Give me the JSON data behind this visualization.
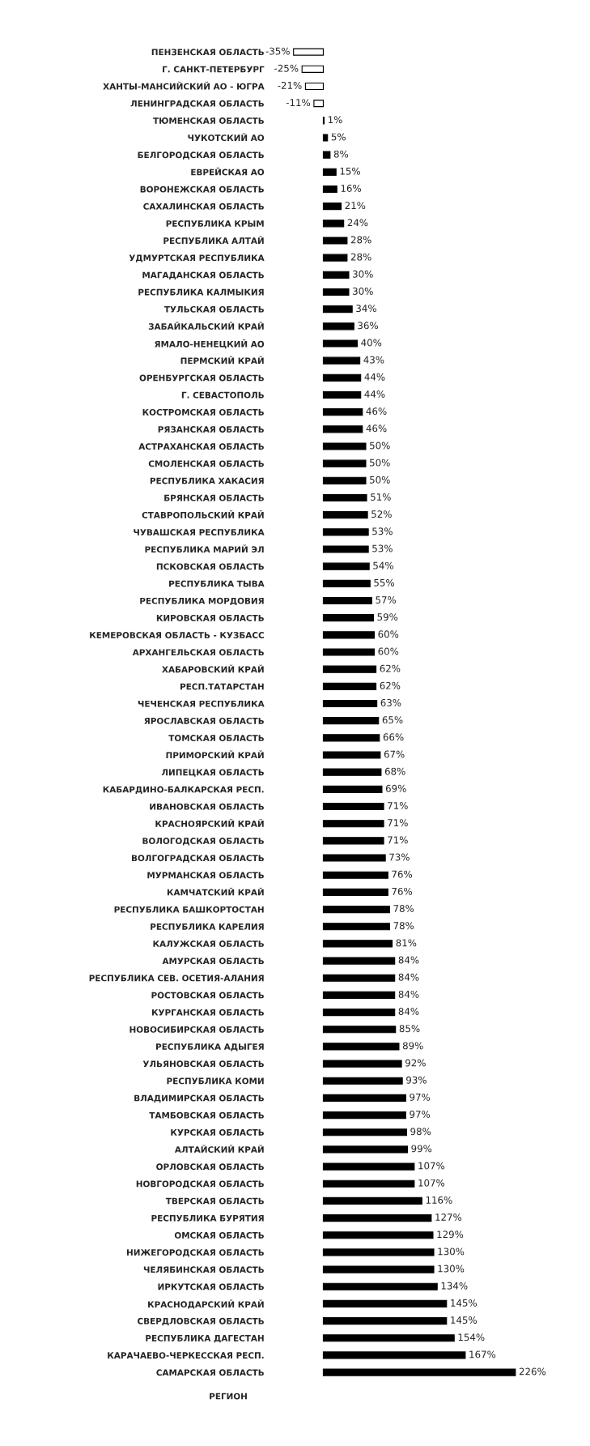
{
  "chart_data": {
    "type": "bar",
    "orientation": "horizontal",
    "ylabel": "РЕГИОН",
    "categories": [
      "ПЕНЗЕНСКАЯ ОБЛАСТЬ",
      "Г. САНКТ-ПЕТЕРБУРГ",
      "ХАНТЫ-МАНСИЙСКИЙ АО - ЮГРА",
      "ЛЕНИНГРАДСКАЯ ОБЛАСТЬ",
      "ТЮМЕНСКАЯ ОБЛАСТЬ",
      "ЧУКОТСКИЙ АО",
      "БЕЛГОРОДСКАЯ ОБЛАСТЬ",
      "ЕВРЕЙСКАЯ АО",
      "ВОРОНЕЖСКАЯ ОБЛАСТЬ",
      "САХАЛИНСКАЯ ОБЛАСТЬ",
      "РЕСПУБЛИКА КРЫМ",
      "РЕСПУБЛИКА АЛТАЙ",
      "УДМУРТСКАЯ РЕСПУБЛИКА",
      "МАГАДАНСКАЯ ОБЛАСТЬ",
      "РЕСПУБЛИКА КАЛМЫКИЯ",
      "ТУЛЬСКАЯ ОБЛАСТЬ",
      "ЗАБАЙКАЛЬСКИЙ КРАЙ",
      "ЯМАЛО-НЕНЕЦКИЙ АО",
      "ПЕРМСКИЙ КРАЙ",
      "ОРЕНБУРГСКАЯ ОБЛАСТЬ",
      "Г. СЕВАСТОПОЛЬ",
      "КОСТРОМСКАЯ ОБЛАСТЬ",
      "РЯЗАНСКАЯ ОБЛАСТЬ",
      "АСТРАХАНСКАЯ ОБЛАСТЬ",
      "СМОЛЕНСКАЯ ОБЛАСТЬ",
      "РЕСПУБЛИКА ХАКАСИЯ",
      "БРЯНСКАЯ ОБЛАСТЬ",
      "СТАВРОПОЛЬСКИЙ КРАЙ",
      "ЧУВАШСКАЯ РЕСПУБЛИКА",
      "РЕСПУБЛИКА МАРИЙ ЭЛ",
      "ПСКОВСКАЯ ОБЛАСТЬ",
      "РЕСПУБЛИКА ТЫВА",
      "РЕСПУБЛИКА МОРДОВИЯ",
      "КИРОВСКАЯ ОБЛАСТЬ",
      "КЕМЕРОВСКАЯ ОБЛАСТЬ - КУЗБАСС",
      "АРХАНГЕЛЬСКАЯ ОБЛАСТЬ",
      "ХАБАРОВСКИЙ КРАЙ",
      "РЕСП.ТАТАРСТАН",
      "ЧЕЧЕНСКАЯ РЕСПУБЛИКА",
      "ЯРОСЛАВСКАЯ ОБЛАСТЬ",
      "ТОМСКАЯ ОБЛАСТЬ",
      "ПРИМОРСКИЙ КРАЙ",
      "ЛИПЕЦКАЯ ОБЛАСТЬ",
      "КАБАРДИНО-БАЛКАРСКАЯ РЕСП.",
      "ИВАНОВСКАЯ ОБЛАСТЬ",
      "КРАСНОЯРСКИЙ КРАЙ",
      "ВОЛОГОДСКАЯ ОБЛАСТЬ",
      "ВОЛГОГРАДСКАЯ ОБЛАСТЬ",
      "МУРМАНСКАЯ ОБЛАСТЬ",
      "КАМЧАТСКИЙ КРАЙ",
      "РЕСПУБЛИКА БАШКОРТОСТАН",
      "РЕСПУБЛИКА КАРЕЛИЯ",
      "КАЛУЖСКАЯ ОБЛАСТЬ",
      "АМУРСКАЯ ОБЛАСТЬ",
      "РЕСПУБЛИКА СЕВ. ОСЕТИЯ-АЛАНИЯ",
      "РОСТОВСКАЯ ОБЛАСТЬ",
      "КУРГАНСКАЯ ОБЛАСТЬ",
      "НОВОСИБИРСКАЯ ОБЛАСТЬ",
      "РЕСПУБЛИКА АДЫГЕЯ",
      "УЛЬЯНОВСКАЯ ОБЛАСТЬ",
      "РЕСПУБЛИКА КОМИ",
      "ВЛАДИМИРСКАЯ ОБЛАСТЬ",
      "ТАМБОВСКАЯ ОБЛАСТЬ",
      "КУРСКАЯ ОБЛАСТЬ",
      "АЛТАЙСКИЙ КРАЙ",
      "ОРЛОВСКАЯ ОБЛАСТЬ",
      "НОВГОРОДСКАЯ ОБЛАСТЬ",
      "ТВЕРСКАЯ ОБЛАСТЬ",
      "РЕСПУБЛИКА БУРЯТИЯ",
      "ОМСКАЯ ОБЛАСТЬ",
      "НИЖЕГОРОДСКАЯ ОБЛАСТЬ",
      "ЧЕЛЯБИНСКАЯ ОБЛАСТЬ",
      "ИРКУТСКАЯ ОБЛАСТЬ",
      "КРАСНОДАРСКИЙ КРАЙ",
      "СВЕРДЛОВСКАЯ ОБЛАСТЬ",
      "РЕСПУБЛИКА ДАГЕСТАН",
      "КАРАЧАЕВО-ЧЕРКЕССКАЯ РЕСП.",
      "САМАРСКАЯ ОБЛАСТЬ"
    ],
    "values": [
      -35,
      -25,
      -21,
      -11,
      1,
      5,
      8,
      15,
      16,
      21,
      24,
      28,
      28,
      30,
      30,
      34,
      36,
      40,
      43,
      44,
      44,
      46,
      46,
      50,
      50,
      50,
      51,
      52,
      53,
      53,
      54,
      55,
      57,
      59,
      60,
      60,
      62,
      62,
      63,
      65,
      66,
      67,
      68,
      69,
      71,
      71,
      71,
      73,
      76,
      76,
      78,
      78,
      81,
      84,
      84,
      84,
      84,
      85,
      89,
      92,
      93,
      97,
      97,
      98,
      99,
      107,
      107,
      116,
      127,
      129,
      130,
      130,
      134,
      145,
      145,
      154,
      167,
      226
    ],
    "value_labels": [
      "-35%",
      "-25%",
      "-21%",
      "-11%",
      "1%",
      "5%",
      "8%",
      "15%",
      "16%",
      "21%",
      "24%",
      "28%",
      "28%",
      "30%",
      "30%",
      "34%",
      "36%",
      "40%",
      "43%",
      "44%",
      "44%",
      "46%",
      "46%",
      "50%",
      "50%",
      "50%",
      "51%",
      "52%",
      "53%",
      "53%",
      "54%",
      "55%",
      "57%",
      "59%",
      "60%",
      "60%",
      "62%",
      "62%",
      "63%",
      "65%",
      "66%",
      "67%",
      "68%",
      "69%",
      "71%",
      "71%",
      "71%",
      "73%",
      "76%",
      "76%",
      "78%",
      "78%",
      "81%",
      "84%",
      "84%",
      "84%",
      "84%",
      "85%",
      "89%",
      "92%",
      "93%",
      "97%",
      "97%",
      "98%",
      "99%",
      "107%",
      "107%",
      "116%",
      "127%",
      "129%",
      "130%",
      "130%",
      "134%",
      "145%",
      "145%",
      "154%",
      "167%",
      "226%"
    ],
    "colors": [
      "#ffffff",
      "#ffffff",
      "#ffffff",
      "#ffffff",
      "#000000",
      "#000000",
      "#000000",
      "#000000",
      "#000000",
      "#000000",
      "#000000",
      "#000000",
      "#000000",
      "#000000",
      "#000000",
      "#000000",
      "#000000",
      "#000000",
      "#000000",
      "#000000",
      "#000000",
      "#000000",
      "#000000",
      "#000000",
      "#000000",
      "#000000",
      "#000000",
      "#000000",
      "#000000",
      "#000000",
      "#000000",
      "#000000",
      "#000000",
      "#000000",
      "#000000",
      "#000000",
      "#000000",
      "#000000",
      "#000000",
      "#000000",
      "#000000",
      "#000000",
      "#000000",
      "#000000",
      "#000000",
      "#000000",
      "#000000",
      "#000000",
      "#000000",
      "#000000",
      "#000000",
      "#000000",
      "#000000",
      "#000000",
      "#000000",
      "#000000",
      "#000000",
      "#000000",
      "#000000",
      "#000000",
      "#000000",
      "#000000",
      "#000000",
      "#000000",
      "#000000",
      "#000000",
      "#000000",
      "#000000",
      "#000000",
      "#000000",
      "#000000",
      "#000000",
      "#000000",
      "#000000",
      "#000000",
      "#000000",
      "#000000",
      "#000000"
    ],
    "grid": false,
    "legend": false
  }
}
